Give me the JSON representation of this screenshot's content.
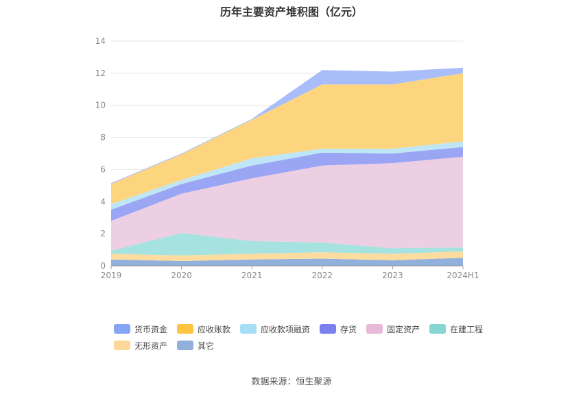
{
  "chart_data": {
    "type": "area",
    "title": "历年主要资产堆积图（亿元）",
    "categories": [
      "2019",
      "2020",
      "2021",
      "2022",
      "2023",
      "2024H1"
    ],
    "ylim": [
      0,
      14
    ],
    "yticks": [
      0,
      2,
      4,
      6,
      8,
      10,
      12,
      14
    ],
    "grid": true,
    "legend_position": "bottom",
    "series": [
      {
        "name": "其它",
        "color": "#92b0dc",
        "values": [
          0.4,
          0.3,
          0.4,
          0.45,
          0.35,
          0.5
        ]
      },
      {
        "name": "无形资产",
        "color": "#fddca0",
        "values": [
          0.35,
          0.35,
          0.35,
          0.4,
          0.4,
          0.4
        ]
      },
      {
        "name": "在建工程",
        "color": "#a6e2e0",
        "values": [
          0.2,
          1.4,
          0.8,
          0.6,
          0.35,
          0.25
        ]
      },
      {
        "name": "固定资产",
        "color": "#edcfe3",
        "values": [
          1.85,
          2.45,
          3.9,
          4.8,
          5.3,
          5.65
        ]
      },
      {
        "name": "存货",
        "color": "#9aa6f4",
        "values": [
          0.7,
          0.6,
          0.8,
          0.8,
          0.6,
          0.6
        ]
      },
      {
        "name": "应收款项融资",
        "color": "#bfe6f6",
        "values": [
          0.35,
          0.25,
          0.45,
          0.25,
          0.3,
          0.35
        ]
      },
      {
        "name": "应收账款",
        "color": "#fdd57e",
        "values": [
          1.25,
          1.6,
          2.4,
          4.0,
          4.0,
          4.25
        ]
      },
      {
        "name": "货币资金",
        "color": "#a9bdfb",
        "values": [
          0.05,
          0.05,
          0.05,
          0.9,
          0.8,
          0.35
        ]
      }
    ],
    "legend": [
      {
        "name": "货币资金",
        "color": "#86a5f7"
      },
      {
        "name": "应收账款",
        "color": "#fcc440"
      },
      {
        "name": "应收款项融资",
        "color": "#a5def5"
      },
      {
        "name": "存货",
        "color": "#7b80ef"
      },
      {
        "name": "固定资产",
        "color": "#e8b9d8"
      },
      {
        "name": "在建工程",
        "color": "#86d6d4"
      },
      {
        "name": "无形资产",
        "color": "#fdd79a"
      },
      {
        "name": "其它",
        "color": "#92b0dc"
      }
    ]
  },
  "source": "数据来源：恒生聚源"
}
